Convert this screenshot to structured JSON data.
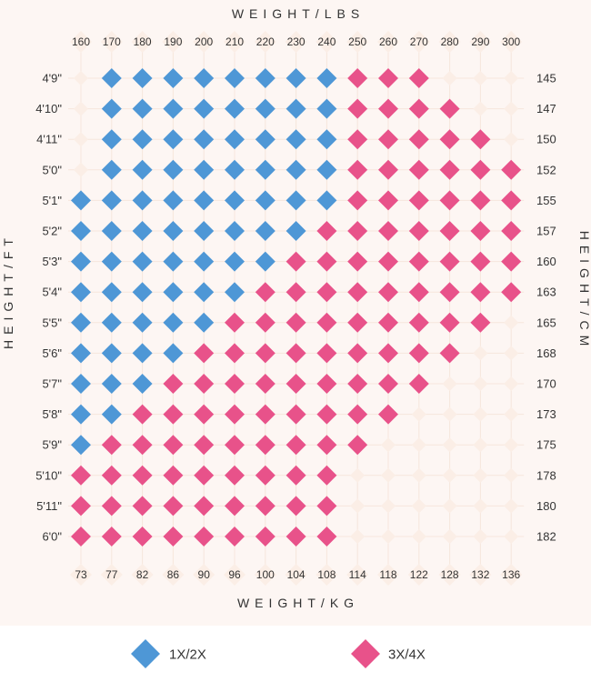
{
  "chart_data": {
    "type": "heatmap",
    "top_axis_title": "WEIGHT/LBS",
    "bottom_axis_title": "WEIGHT/KG",
    "left_axis_title": "HEIGHT/FT",
    "right_axis_title": "HEIGHT/CM",
    "weight_lbs": [
      "160",
      "170",
      "180",
      "190",
      "200",
      "210",
      "220",
      "230",
      "240",
      "250",
      "260",
      "270",
      "280",
      "290",
      "300"
    ],
    "weight_kg": [
      "73",
      "77",
      "82",
      "86",
      "90",
      "96",
      "100",
      "104",
      "108",
      "114",
      "118",
      "122",
      "128",
      "132",
      "136"
    ],
    "height_ft": [
      "4'9\"",
      "4'10\"",
      "4'11\"",
      "5'0\"",
      "5'1\"",
      "5'2\"",
      "5'3\"",
      "5'4\"",
      "5'5\"",
      "5'6\"",
      "5'7\"",
      "5'8\"",
      "5'9\"",
      "5'10\"",
      "5'11\"",
      "6'0\""
    ],
    "height_cm": [
      "145",
      "147",
      "150",
      "152",
      "155",
      "157",
      "160",
      "163",
      "165",
      "168",
      "170",
      "173",
      "175",
      "178",
      "180",
      "182"
    ],
    "cell_legend": {
      "0": "none",
      "1": "1X/2X",
      "2": "3X/4X"
    },
    "grid": [
      "011111111222000",
      "011111111222200",
      "011111111222220",
      "011111111222222",
      "111111111222222",
      "111111112222222",
      "111111122222222",
      "111111222222222",
      "111112222222220",
      "111122222222200",
      "111222222222000",
      "112222222220000",
      "122222222200000",
      "222222222000000",
      "222222222000000",
      "222222222000000"
    ],
    "legend": [
      {
        "label": "1X/2X",
        "color": "#4e97d6"
      },
      {
        "label": "3X/4X",
        "color": "#e8528a"
      }
    ],
    "colors": {
      "size_1x2x": "#4e97d6",
      "size_3x4x": "#e8528a",
      "empty_cell": "#fbeee6",
      "chart_background": "#fdf6f3",
      "legend_background": "#ffffff"
    }
  }
}
